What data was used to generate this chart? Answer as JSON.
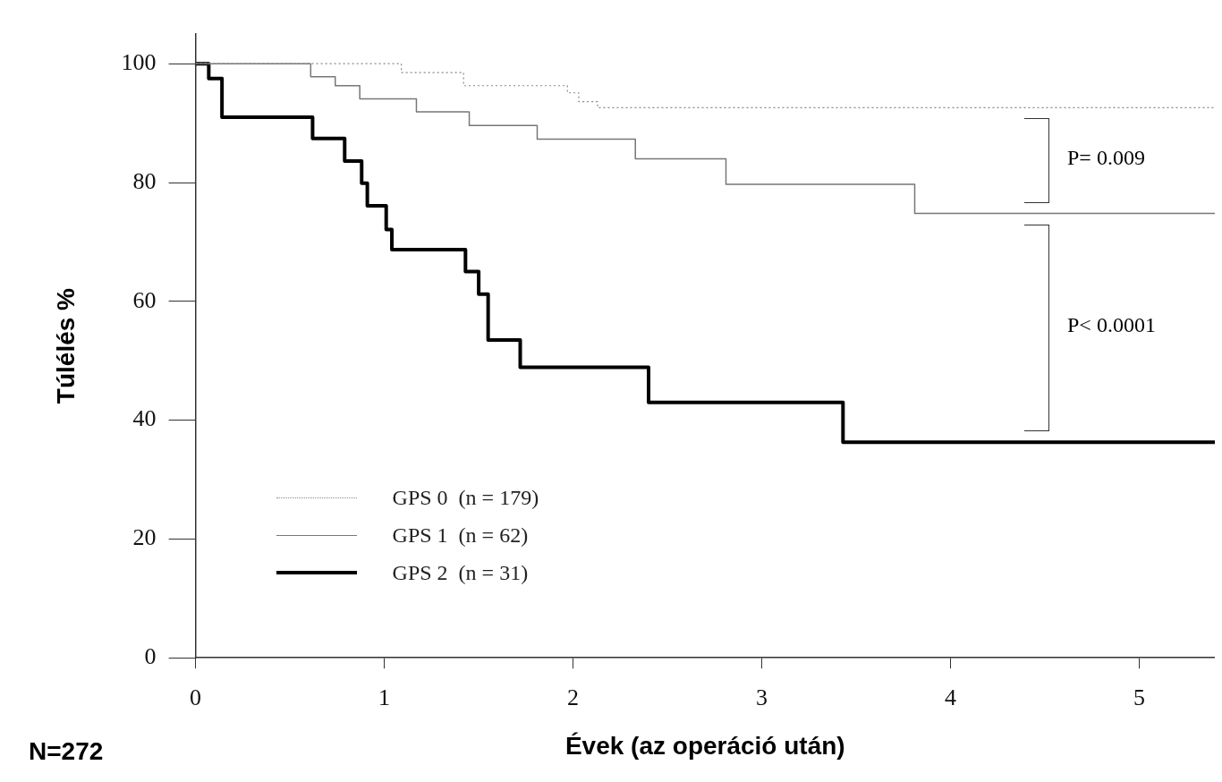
{
  "chart_data": {
    "type": "step",
    "xlabel": "Évek (az operáció után)",
    "ylabel": "Túlélés %",
    "xlim": [
      0,
      5.4
    ],
    "ylim": [
      0,
      105
    ],
    "xticks": [
      0,
      1,
      2,
      3,
      4,
      5
    ],
    "yticks": [
      0,
      20,
      40,
      60,
      80,
      100
    ],
    "grid": false,
    "legend": "bottom left",
    "marker": "none",
    "series": [
      {
        "name": "GPS 0  (n = 179)",
        "color": "#888888",
        "line_style": "dotted",
        "x": [
          0,
          1.09,
          1.42,
          1.97,
          2.03,
          2.13,
          5.4
        ],
        "values": [
          100,
          98.5,
          96.3,
          95.1,
          93.6,
          92.6,
          92.6
        ]
      },
      {
        "name": "GPS 1  (n = 62)",
        "color": "#777777",
        "line_style": "solid",
        "x": [
          0,
          0.61,
          0.74,
          0.87,
          1.17,
          1.45,
          1.81,
          2.33,
          2.81,
          3.81,
          5.4
        ],
        "values": [
          100,
          97.8,
          96.3,
          94.1,
          91.9,
          89.6,
          87.3,
          84,
          79.7,
          74.8,
          74.8
        ]
      },
      {
        "name": "GPS 2  (n = 31)",
        "color": "#000000",
        "line_style": "solid",
        "x": [
          0,
          0.07,
          0.14,
          0.62,
          0.79,
          0.88,
          0.91,
          1.01,
          1.04,
          1.43,
          1.5,
          1.55,
          1.72,
          2.4,
          3.43,
          5.4
        ],
        "values": [
          100,
          97.5,
          91,
          87.4,
          83.6,
          79.9,
          76.1,
          72.1,
          68.7,
          65,
          61.2,
          53.5,
          48.9,
          43,
          36.3,
          36.3
        ]
      }
    ],
    "annotations": [
      "P= 0.009",
      "P< 0.0001",
      "N=272"
    ]
  }
}
